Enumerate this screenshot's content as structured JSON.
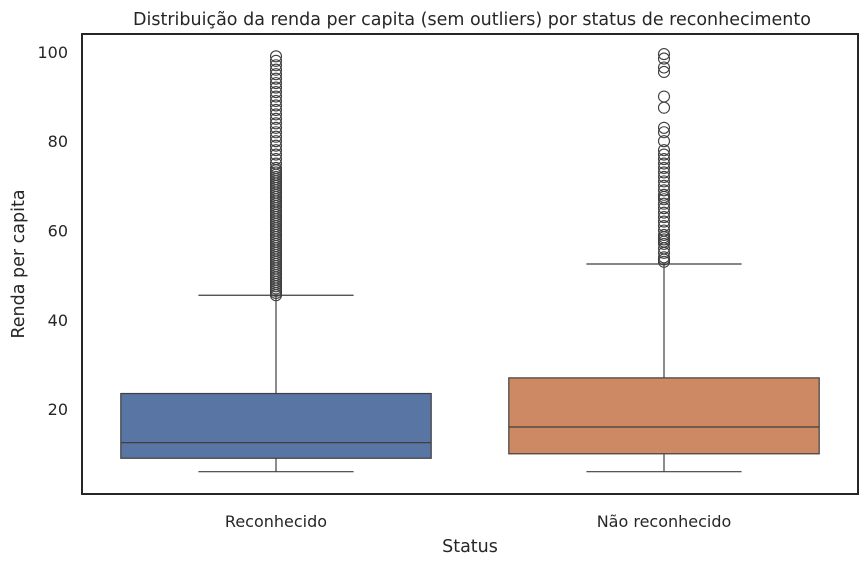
{
  "chart_data": {
    "type": "box",
    "title": "Distribuição da renda per capita (sem outliers) por status de reconhecimento",
    "xlabel": "Status",
    "ylabel": "Renda per capita",
    "ylim": [
      1,
      104
    ],
    "yticks": [
      20,
      40,
      60,
      80,
      100
    ],
    "grid": false,
    "categories": [
      "Reconhecido",
      "Não reconhecido"
    ],
    "boxes": [
      {
        "category": "Reconhecido",
        "color": "#5875a4",
        "whisker_low": 6,
        "q1": 9,
        "median": 12.5,
        "q3": 23.5,
        "whisker_high": 45.5,
        "outliers_range": [
          45.5,
          99
        ],
        "outliers": [
          45.5,
          46,
          46.5,
          47,
          47.5,
          48,
          48.5,
          49,
          49.5,
          50,
          50.5,
          51,
          51.5,
          52,
          52.5,
          53,
          53.5,
          54,
          54.5,
          55,
          55.5,
          56,
          56.5,
          57,
          57.5,
          58,
          58.5,
          59,
          59.5,
          60,
          60.5,
          61,
          61.5,
          62,
          62.5,
          63,
          63.5,
          64,
          64.5,
          65,
          65.5,
          66,
          66.5,
          67,
          67.5,
          68,
          68.5,
          69,
          69.5,
          70,
          70.5,
          71,
          71.5,
          72,
          72.5,
          73,
          73.5,
          74,
          75,
          76,
          77,
          78,
          79,
          80,
          81,
          82,
          83,
          84,
          85,
          86,
          87,
          88,
          89,
          90,
          91,
          92,
          93,
          94,
          95,
          96,
          97,
          98,
          99
        ]
      },
      {
        "category": "Não reconhecido",
        "color": "#cc8963",
        "whisker_low": 6,
        "q1": 10,
        "median": 16,
        "q3": 27,
        "whisker_high": 52.5,
        "outliers_range": [
          53,
          99.5
        ],
        "outliers": [
          53,
          53.5,
          54,
          55,
          56,
          57,
          57.5,
          58,
          58.5,
          59,
          60,
          61,
          62,
          63,
          64,
          65,
          66,
          67,
          67.5,
          68,
          69,
          70,
          71,
          72,
          73,
          74,
          75,
          76,
          77,
          78,
          80,
          82,
          83,
          87.5,
          90,
          95.5,
          96.5,
          98.5,
          99.5
        ]
      }
    ]
  }
}
